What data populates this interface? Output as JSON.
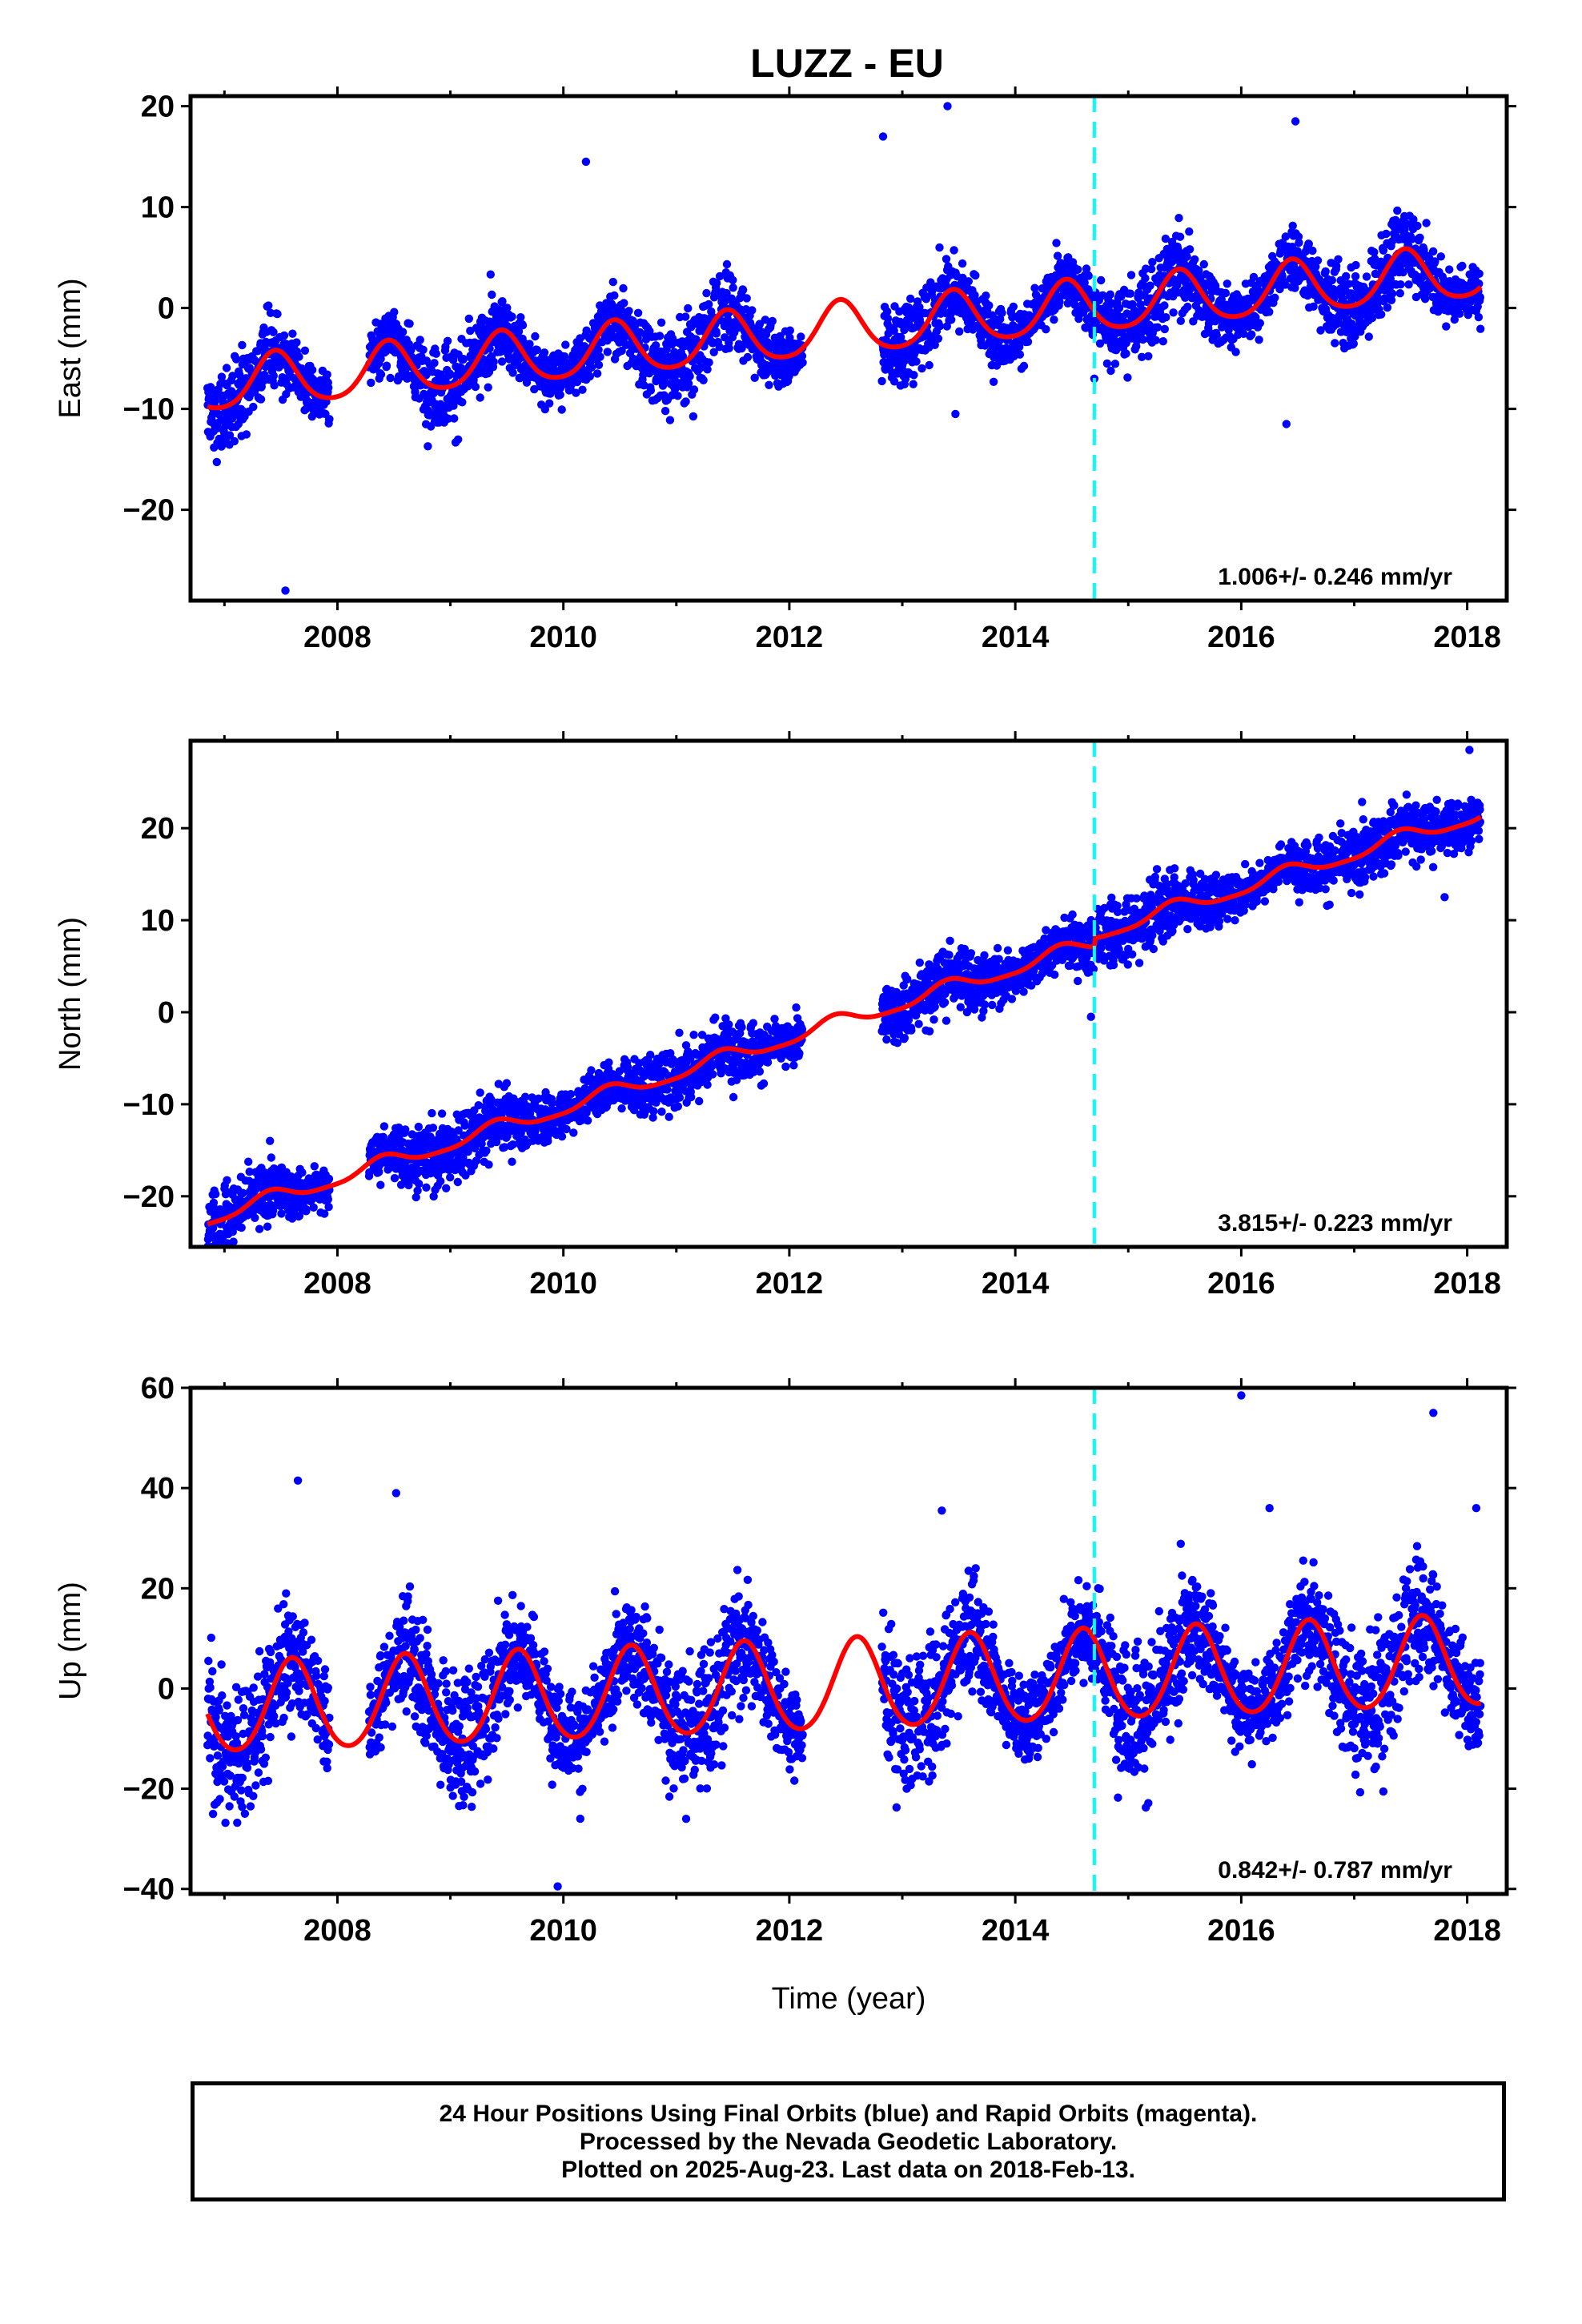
{
  "title": "LUZZ - EU",
  "xlabel": "Time (year)",
  "colors": {
    "final_orbits": "#0000ff",
    "model_fit": "#ff0000",
    "equipment_change": "#00ffff",
    "frame": "#000000"
  },
  "footer": {
    "line1": "24 Hour Positions Using Final Orbits (blue) and Rapid Orbits (magenta).",
    "line2": "Processed by the Nevada Geodetic Laboratory.",
    "line3": "Plotted on 2025-Aug-23. Last data on 2018-Feb-13."
  },
  "chart_data": [
    {
      "type": "scatter",
      "name": "east",
      "ylabel": "East (mm)",
      "xlim": [
        2006.7,
        2018.35
      ],
      "ylim": [
        -29,
        21
      ],
      "xticks": [
        "2008",
        "2010",
        "2012",
        "2014",
        "2016",
        "2018"
      ],
      "yticks": [
        "20",
        "10",
        "0",
        "−10",
        "−20"
      ],
      "rate": "1.006+/- 0.246 mm/yr",
      "equipment_change_year": 2014.7,
      "model": {
        "trend_mm_per_yr": 1.006,
        "ref_year": 2013.0,
        "offset_mm": -1.6,
        "annual_amp_mm": 2.6,
        "annual_peak_frac": 0.45,
        "semiannual_amp_mm": 0.4
      },
      "data_segments": [
        [
          2006.85,
          2007.93
        ],
        [
          2008.28,
          2012.12
        ],
        [
          2012.82,
          2018.12
        ]
      ],
      "outliers": [
        [
          2007.54,
          -28
        ],
        [
          2012.83,
          17
        ],
        [
          2013.4,
          20
        ],
        [
          2013.47,
          -10.5
        ],
        [
          2014.7,
          -7
        ],
        [
          2016.4,
          -11.5
        ],
        [
          2010.2,
          14.5
        ],
        [
          2016.48,
          18.5
        ]
      ],
      "scatter_sd_mm": 1.7
    },
    {
      "type": "scatter",
      "name": "north",
      "ylabel": "North (mm)",
      "xlim": [
        2006.7,
        2018.35
      ],
      "ylim": [
        -25.5,
        29.5
      ],
      "xticks": [
        "2008",
        "2010",
        "2012",
        "2014",
        "2016",
        "2018"
      ],
      "yticks": [
        "20",
        "10",
        "0",
        "−10",
        "−20"
      ],
      "rate": "3.815+/- 0.223 mm/yr",
      "equipment_change_year": 2014.7,
      "model": {
        "trend_mm_per_yr": 3.815,
        "ref_year": 2012.86,
        "offset_mm": 0.5,
        "annual_amp_mm": 0.8,
        "annual_peak_frac": 0.4,
        "semiannual_amp_mm": 0.2,
        "step_year": 2014.7,
        "step_mm": 1.0
      },
      "data_segments": [
        [
          2006.85,
          2007.93
        ],
        [
          2008.28,
          2012.12
        ],
        [
          2012.82,
          2018.12
        ]
      ],
      "outliers": [
        [
          2018.02,
          28.5
        ],
        [
          2017.8,
          12.5
        ],
        [
          2014.67,
          -0.5
        ]
      ],
      "scatter_sd_mm": 1.5
    },
    {
      "type": "scatter",
      "name": "up",
      "ylabel": "Up (mm)",
      "xlim": [
        2006.7,
        2018.35
      ],
      "ylim": [
        -41,
        60
      ],
      "xticks": [
        "2008",
        "2010",
        "2012",
        "2014",
        "2016",
        "2018"
      ],
      "yticks": [
        "60",
        "40",
        "20",
        "0",
        "−20",
        "−40"
      ],
      "rate": "0.842+/- 0.787 mm/yr",
      "equipment_change_year": 2014.7,
      "model": {
        "trend_mm_per_yr": 0.842,
        "ref_year": 2012.5,
        "offset_mm": 0.5,
        "annual_amp_mm": 9.0,
        "annual_peak_frac": 0.6,
        "semiannual_amp_mm": 0.8
      },
      "data_segments": [
        [
          2006.85,
          2007.93
        ],
        [
          2008.28,
          2012.12
        ],
        [
          2012.82,
          2018.12
        ]
      ],
      "outliers": [
        [
          2016.0,
          58.5
        ],
        [
          2017.7,
          55
        ],
        [
          2007.65,
          41.5
        ],
        [
          2009.95,
          -39.5
        ],
        [
          2010.15,
          -26
        ],
        [
          2008.52,
          39
        ],
        [
          2016.25,
          36
        ],
        [
          2013.35,
          35.5
        ],
        [
          2018.08,
          36
        ]
      ],
      "scatter_sd_mm": 5.5
    }
  ]
}
